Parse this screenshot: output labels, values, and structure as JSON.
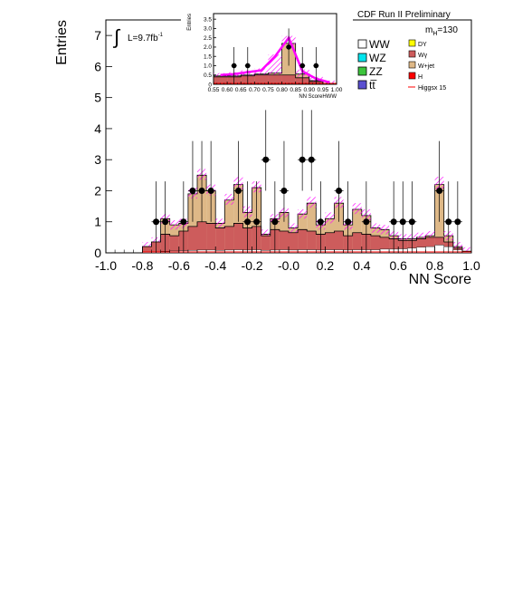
{
  "header": {
    "title": "CDF Run II Preliminary",
    "mass_label": "m",
    "mass_sub": "H",
    "mass_value": "=130",
    "lumi": "L=9.7fb",
    "lumi_exp": "-1"
  },
  "legend": {
    "left": [
      {
        "label": "WW",
        "color": "#ffffff"
      },
      {
        "label": "WZ",
        "color": "#00e5ee"
      },
      {
        "label": "ZZ",
        "color": "#3cc43c"
      },
      {
        "label": "tt̅",
        "color": "#5a4fd0"
      }
    ],
    "right": [
      {
        "label": "DY",
        "color": "#ffff00"
      },
      {
        "label": "Wγ",
        "color": "#cd5c5c"
      },
      {
        "label": "W+jet",
        "color": "#deb887"
      },
      {
        "label": "H",
        "color": "#ff0000"
      },
      {
        "label": "Higgsx 15",
        "color": "#ff0000",
        "kind": "line"
      }
    ]
  },
  "colors": {
    "wjet": "#deb887",
    "wgamma": "#cd5c5c",
    "ww": "#ffffff",
    "higgs": "#ff0000",
    "signal_band": "#ff00ff",
    "data": "#000000"
  },
  "chart_data": [
    {
      "type": "histogram",
      "xlabel": "NN Score",
      "ylabel": "Entries",
      "xlim": [
        -1.0,
        1.0
      ],
      "ylim": [
        0,
        7.5
      ],
      "xticks": [
        "-1.0",
        "-0.8",
        "-0.6",
        "-0.4",
        "-0.2",
        "-0.0",
        "0.2",
        "0.4",
        "0.6",
        "0.8",
        "1.0"
      ],
      "yticks": [
        "0",
        "1",
        "2",
        "3",
        "4",
        "5",
        "6",
        "7"
      ],
      "bin_edges_start": -0.8,
      "bin_width": 0.05,
      "bins_x": [
        -0.775,
        -0.725,
        -0.675,
        -0.625,
        -0.575,
        -0.525,
        -0.475,
        -0.425,
        -0.375,
        -0.325,
        -0.275,
        -0.225,
        -0.175,
        -0.125,
        -0.075,
        -0.025,
        0.025,
        0.075,
        0.125,
        0.175,
        0.225,
        0.275,
        0.325,
        0.375,
        0.425,
        0.475,
        0.525,
        0.575,
        0.625,
        0.675,
        0.725,
        0.775,
        0.825,
        0.875,
        0.925,
        0.975
      ],
      "stack_total": [
        0.2,
        0.35,
        1.1,
        0.9,
        0.95,
        1.9,
        2.5,
        2.0,
        0.95,
        1.7,
        2.2,
        1.3,
        2.1,
        0.6,
        1.1,
        1.3,
        0.8,
        1.25,
        1.6,
        0.9,
        1.1,
        1.6,
        0.9,
        1.4,
        1.2,
        0.8,
        0.75,
        0.55,
        0.45,
        0.45,
        0.5,
        0.55,
        2.2,
        0.55,
        0.2,
        0.05
      ],
      "wgamma": [
        0.2,
        0.35,
        0.6,
        0.55,
        0.7,
        0.85,
        1.0,
        0.95,
        0.8,
        0.85,
        0.95,
        0.8,
        0.85,
        0.55,
        0.75,
        0.7,
        0.65,
        0.75,
        0.7,
        0.6,
        0.65,
        0.7,
        0.55,
        0.65,
        0.6,
        0.55,
        0.5,
        0.45,
        0.4,
        0.4,
        0.45,
        0.5,
        0.5,
        0.35,
        0.15,
        0.05
      ],
      "ww": [
        0.02,
        0.03,
        0.05,
        0.06,
        0.07,
        0.08,
        0.09,
        0.09,
        0.08,
        0.09,
        0.1,
        0.09,
        0.1,
        0.08,
        0.09,
        0.1,
        0.09,
        0.1,
        0.1,
        0.09,
        0.1,
        0.1,
        0.09,
        0.1,
        0.1,
        0.1,
        0.12,
        0.12,
        0.13,
        0.15,
        0.18,
        0.2,
        0.25,
        0.2,
        0.1,
        0.03
      ],
      "signal_band": [
        0.25,
        0.4,
        1.15,
        0.95,
        1.0,
        2.0,
        2.6,
        2.1,
        1.0,
        1.8,
        2.35,
        1.4,
        2.2,
        0.65,
        1.15,
        1.35,
        0.85,
        1.3,
        1.7,
        0.95,
        1.2,
        1.7,
        0.95,
        1.5,
        1.3,
        0.85,
        0.8,
        0.6,
        0.5,
        0.5,
        0.55,
        0.6,
        2.35,
        0.6,
        0.25,
        0.08
      ],
      "data": [
        {
          "x": -0.725,
          "y": 1
        },
        {
          "x": -0.675,
          "y": 1
        },
        {
          "x": -0.575,
          "y": 1
        },
        {
          "x": -0.525,
          "y": 2
        },
        {
          "x": -0.475,
          "y": 2
        },
        {
          "x": -0.425,
          "y": 2
        },
        {
          "x": -0.275,
          "y": 2
        },
        {
          "x": -0.225,
          "y": 1
        },
        {
          "x": -0.175,
          "y": 1
        },
        {
          "x": -0.125,
          "y": 3
        },
        {
          "x": -0.075,
          "y": 1
        },
        {
          "x": -0.025,
          "y": 2
        },
        {
          "x": 0.075,
          "y": 3
        },
        {
          "x": 0.125,
          "y": 3
        },
        {
          "x": 0.175,
          "y": 1
        },
        {
          "x": 0.275,
          "y": 2
        },
        {
          "x": 0.325,
          "y": 1
        },
        {
          "x": 0.425,
          "y": 1
        },
        {
          "x": 0.575,
          "y": 1
        },
        {
          "x": 0.625,
          "y": 1
        },
        {
          "x": 0.675,
          "y": 1
        },
        {
          "x": 0.825,
          "y": 2
        },
        {
          "x": 0.875,
          "y": 1
        },
        {
          "x": 0.925,
          "y": 1
        }
      ],
      "error_up": [
        2.3,
        2.3,
        2.3,
        3.6,
        3.6,
        3.6,
        3.6,
        2.3,
        2.3,
        4.6,
        2.3,
        3.6,
        4.6,
        4.6,
        2.3,
        3.6,
        2.3,
        2.3,
        2.3,
        2.3,
        2.3,
        3.6,
        2.3,
        2.3
      ]
    },
    {
      "type": "histogram",
      "xlabel": "NN ScoreHWW",
      "ylabel": "Entries",
      "xlim": [
        0.55,
        1.0
      ],
      "ylim": [
        0,
        3.8
      ],
      "xticks": [
        "0.55",
        "0.60",
        "0.65",
        "0.70",
        "0.75",
        "0.80",
        "0.85",
        "0.90",
        "0.95",
        "1.00"
      ],
      "yticks": [
        "0",
        "0.5",
        "1.0",
        "1.5",
        "2.0",
        "2.5",
        "3.0",
        "3.5"
      ],
      "bins_x": [
        0.575,
        0.625,
        0.675,
        0.725,
        0.775,
        0.825,
        0.875,
        0.925,
        0.975
      ],
      "stack_total": [
        0.45,
        0.45,
        0.5,
        0.55,
        0.6,
        2.2,
        0.55,
        0.2,
        0.05
      ],
      "wgamma": [
        0.4,
        0.4,
        0.45,
        0.5,
        0.5,
        0.5,
        0.35,
        0.15,
        0.05
      ],
      "signal_band": [
        0.5,
        0.55,
        0.65,
        0.75,
        1.5,
        2.5,
        0.7,
        0.3,
        0.1
      ],
      "data": [
        {
          "x": 0.625,
          "y": 1
        },
        {
          "x": 0.675,
          "y": 1
        },
        {
          "x": 0.825,
          "y": 2
        },
        {
          "x": 0.875,
          "y": 1
        },
        {
          "x": 0.925,
          "y": 1
        }
      ]
    }
  ]
}
